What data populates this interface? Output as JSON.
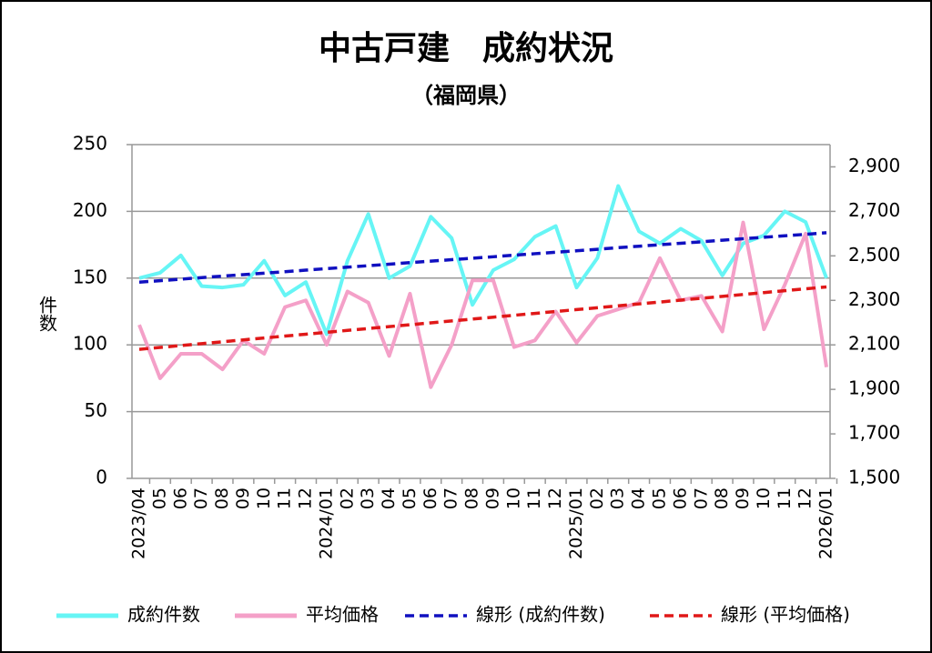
{
  "chart_data": {
    "type": "line",
    "title": "中古戸建　成約状況",
    "subtitle": "（福岡県）",
    "y_label": "件数",
    "categories": [
      "2023/04",
      "05",
      "06",
      "07",
      "08",
      "09",
      "10",
      "11",
      "12",
      "2024/01",
      "02",
      "03",
      "04",
      "05",
      "06",
      "07",
      "08",
      "09",
      "10",
      "11",
      "12",
      "2025/01",
      "02",
      "03",
      "04",
      "05",
      "06",
      "07",
      "08",
      "09",
      "10",
      "11",
      "12",
      "2026/01"
    ],
    "series": [
      {
        "name": "成約件数",
        "color": "#66f5f5",
        "dashed": false,
        "values": [
          150,
          154,
          167,
          144,
          143,
          145,
          163,
          137,
          147,
          108,
          163,
          198,
          150,
          159,
          196,
          180,
          130,
          156,
          164,
          181,
          189,
          143,
          165,
          219,
          185,
          176,
          187,
          178,
          152,
          176,
          182,
          200,
          192,
          150
        ]
      },
      {
        "name": "平均価格",
        "color": "#f4a0c8",
        "dashed": false,
        "axis": "y2",
        "values": [
          2190,
          1950,
          2060,
          2060,
          1990,
          2120,
          2060,
          2270,
          2300,
          2100,
          2340,
          2290,
          2050,
          2330,
          1910,
          2100,
          2390,
          2390,
          2090,
          2120,
          2250,
          2110,
          2230,
          2260,
          2290,
          2490,
          2300,
          2320,
          2160,
          2650,
          2170,
          2370,
          2600,
          2000
        ]
      },
      {
        "name": "線形 (成約件数)",
        "color": "#1010c0",
        "dashed": true,
        "values": [
          147,
          148.1,
          149.2,
          150.4,
          151.5,
          152.6,
          153.7,
          154.8,
          156,
          157.1,
          158.2,
          159.3,
          160.4,
          161.6,
          162.7,
          163.8,
          164.9,
          166,
          167.2,
          168.3,
          169.4,
          170.5,
          171.6,
          172.8,
          173.9,
          175,
          176.1,
          177.2,
          178.4,
          179.5,
          180.6,
          181.7,
          182.8,
          184
        ]
      },
      {
        "name": "線形 (平均価格)",
        "color": "#e01818",
        "dashed": true,
        "axis": "y2",
        "values": [
          2080,
          2088.5,
          2097,
          2105.5,
          2114,
          2122.5,
          2131,
          2139.5,
          2148,
          2156.5,
          2165,
          2173.5,
          2182,
          2190.5,
          2199,
          2207.5,
          2216,
          2224.5,
          2233,
          2241.5,
          2250,
          2258.5,
          2267,
          2275.5,
          2284,
          2292.5,
          2301,
          2309.5,
          2318,
          2326.5,
          2335,
          2343.5,
          2352,
          2360.5
        ]
      }
    ],
    "ylim": [
      0,
      250
    ],
    "yticks": [
      0,
      50,
      100,
      150,
      200,
      250
    ],
    "y2lim": [
      1500,
      3000
    ],
    "y2ticks": [
      {
        "value": 1500,
        "label": "1,500"
      },
      {
        "value": 1700,
        "label": "1,700"
      },
      {
        "value": 1900,
        "label": "1,900"
      },
      {
        "value": 2100,
        "label": "2,100"
      },
      {
        "value": 2300,
        "label": "2,300"
      },
      {
        "value": 2500,
        "label": "2,500"
      },
      {
        "value": 2700,
        "label": "2,700"
      },
      {
        "value": 2900,
        "label": "2,900"
      }
    ],
    "grid": true,
    "legend": "bottom"
  }
}
